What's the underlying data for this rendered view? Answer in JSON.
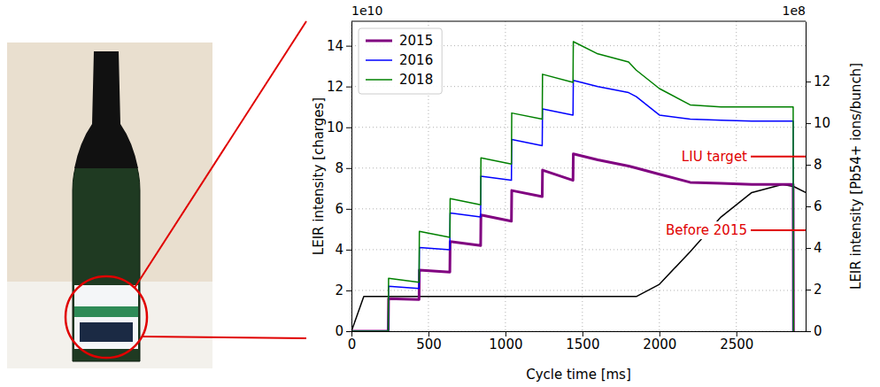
{
  "chart_data": {
    "type": "line",
    "xlabel": "Cycle time [ms]",
    "ylabel": "LEIR intensity [charges]",
    "y2label": "LEIR intensity [Pb54+ ions/bunch]",
    "y_multiplier": "1e10",
    "y2_multiplier": "1e8",
    "x": [
      0,
      80,
      239,
      241,
      439,
      441,
      639,
      641,
      839,
      841,
      1039,
      1041,
      1239,
      1241,
      1439,
      1441,
      1600,
      1800,
      1850,
      2000,
      2200,
      2400,
      2600,
      2800,
      2869,
      2871,
      2950
    ],
    "series": [
      {
        "name": "2015",
        "color": "#800080",
        "values": [
          0,
          0,
          0,
          1.6,
          1.55,
          3.0,
          2.9,
          4.4,
          4.2,
          5.7,
          5.4,
          6.9,
          6.6,
          7.9,
          7.4,
          8.7,
          8.4,
          8.1,
          8.0,
          7.7,
          7.3,
          7.25,
          7.2,
          7.2,
          7.2,
          0,
          null
        ]
      },
      {
        "name": "2016",
        "color": "#0000ff",
        "values": [
          0,
          0,
          0,
          2.2,
          2.1,
          4.1,
          4.0,
          5.8,
          5.6,
          7.6,
          7.4,
          9.4,
          9.1,
          10.9,
          10.6,
          12.3,
          12.0,
          11.7,
          11.5,
          10.6,
          10.4,
          10.35,
          10.3,
          10.3,
          10.3,
          0,
          null
        ]
      },
      {
        "name": "2018",
        "color": "#008000",
        "values": [
          0,
          0,
          0,
          2.6,
          2.4,
          4.9,
          4.6,
          6.5,
          6.2,
          8.5,
          8.2,
          10.7,
          10.4,
          12.6,
          12.2,
          14.2,
          13.6,
          13.2,
          12.8,
          11.9,
          11.1,
          11.0,
          11.0,
          11.0,
          11.0,
          0,
          null
        ]
      },
      {
        "color": "#000000",
        "values": [
          0,
          1.7,
          1.7,
          1.7,
          1.7,
          1.7,
          1.7,
          1.7,
          1.7,
          1.7,
          1.7,
          1.7,
          1.7,
          1.7,
          1.7,
          1.7,
          1.7,
          1.7,
          1.7,
          2.3,
          3.9,
          5.6,
          6.8,
          7.2,
          7.1,
          7.1,
          6.8
        ]
      }
    ],
    "xlim": [
      0,
      2950
    ],
    "xticks": [
      0,
      500,
      1000,
      1500,
      2000,
      2500
    ],
    "ylim": [
      0,
      15.2
    ],
    "yticks": [
      0,
      2,
      4,
      6,
      8,
      10,
      12,
      14
    ],
    "y2lim": [
      0,
      14.9
    ],
    "y2ticks": [
      0,
      2,
      4,
      6,
      8,
      10,
      12
    ],
    "annotations": [
      {
        "text": "LIU target",
        "y2": 8.4,
        "color": "#e00000"
      },
      {
        "text": "Before 2015",
        "y2": 4.85,
        "color": "#e00000"
      }
    ],
    "grid": true,
    "legend": "upper left"
  }
}
